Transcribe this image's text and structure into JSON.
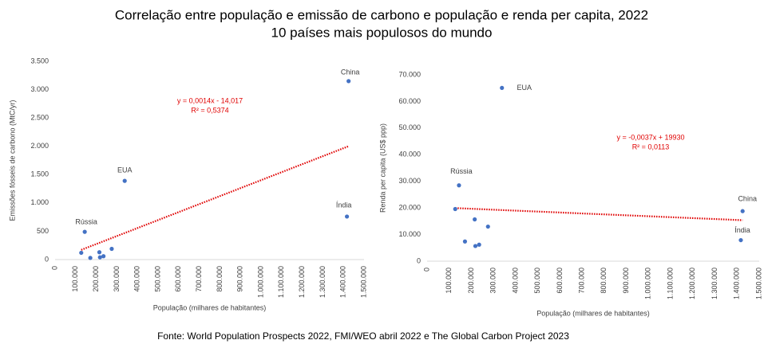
{
  "title": "Correlação entre população e emissão de carbono e população e renda per capita, 2022",
  "subtitle": "10 países mais populosos do mundo",
  "source": "Fonte: World Population Prospects 2022, FMI/WEO abril 2022 e The Global Carbon Project 2023",
  "chart_data": [
    {
      "type": "scatter",
      "color": "#4472c4",
      "trendline_color": "#e00000",
      "x_label": "População (milhares de habitantes)",
      "y_label": "Emissões fósseis de carbono (MtC/yr)",
      "annotations": [
        "y = 0,0014x - 14,017",
        "R² = 0,5374"
      ],
      "x": [
        1425000,
        1417000,
        338000,
        275000,
        235000,
        218000,
        215000,
        171000,
        144000,
        127000
      ],
      "y": [
        3150,
        760,
        1390,
        190,
        60,
        40,
        130,
        30,
        490,
        120
      ],
      "labels": [
        "China",
        "Índia",
        "EUA",
        null,
        null,
        null,
        null,
        null,
        "Rússia",
        null
      ],
      "xlim": [
        0,
        1500000
      ],
      "xticks": [
        0,
        {
          "value": 100000,
          "label": "100.000"
        },
        {
          "value": 200000,
          "label": "200.000"
        },
        {
          "value": 300000,
          "label": "300.000"
        },
        {
          "value": 400000,
          "label": "400.000"
        },
        {
          "value": 500000,
          "label": "500.000"
        },
        {
          "value": 600000,
          "label": "600.000"
        },
        {
          "value": 700000,
          "label": "700.000"
        },
        {
          "value": 800000,
          "label": "800.000"
        },
        {
          "value": 900000,
          "label": "900.000"
        },
        {
          "value": 1000000,
          "label": "1.000.000"
        },
        {
          "value": 1100000,
          "label": "1.100.000"
        },
        {
          "value": 1200000,
          "label": "1.200.000"
        },
        {
          "value": 1300000,
          "label": "1.300.000"
        },
        {
          "value": 1400000,
          "label": "1.400.000"
        },
        {
          "value": 1500000,
          "label": "1.500.000"
        }
      ],
      "ylim": [
        0,
        3500
      ],
      "yticks": [
        0,
        500,
        {
          "value": 1000,
          "label": "1.000"
        },
        {
          "value": 1500,
          "label": "1.500"
        },
        {
          "value": 2000,
          "label": "2.000"
        },
        {
          "value": 2500,
          "label": "2.500"
        },
        {
          "value": 3000,
          "label": "3.000"
        },
        {
          "value": 3500,
          "label": "3.500"
        }
      ]
    },
    {
      "type": "scatter",
      "color": "#4472c4",
      "trendline_color": "#e00000",
      "x_label": "População (milhares de habitantes)",
      "y_label": "Renda per capita (US$ ppp)",
      "annotations": [
        "y = -0,0037x + 19930",
        "R² = 0,0113"
      ],
      "x": [
        1425000,
        1417000,
        338000,
        275000,
        235000,
        218000,
        215000,
        171000,
        144000,
        127000
      ],
      "y": [
        18800,
        7900,
        65100,
        13000,
        6200,
        5700,
        15700,
        7400,
        28500,
        19600
      ],
      "labels": [
        "China",
        "Índia",
        "EUA",
        null,
        null,
        null,
        null,
        null,
        "Rússia",
        null
      ],
      "xlim": [
        0,
        1500000
      ],
      "xticks": [
        0,
        {
          "value": 100000,
          "label": "100.000"
        },
        {
          "value": 200000,
          "label": "200.000"
        },
        {
          "value": 300000,
          "label": "300.000"
        },
        {
          "value": 400000,
          "label": "400.000"
        },
        {
          "value": 500000,
          "label": "500.000"
        },
        {
          "value": 600000,
          "label": "600.000"
        },
        {
          "value": 700000,
          "label": "700.000"
        },
        {
          "value": 800000,
          "label": "800.000"
        },
        {
          "value": 900000,
          "label": "900.000"
        },
        {
          "value": 1000000,
          "label": "1.000.000"
        },
        {
          "value": 1100000,
          "label": "1.100.000"
        },
        {
          "value": 1200000,
          "label": "1.200.000"
        },
        {
          "value": 1300000,
          "label": "1.300.000"
        },
        {
          "value": 1400000,
          "label": "1.400.000"
        },
        {
          "value": 1500000,
          "label": "1.500.000"
        }
      ],
      "ylim": [
        0,
        70000
      ],
      "yticks": [
        0,
        {
          "value": 10000,
          "label": "10.000"
        },
        {
          "value": 20000,
          "label": "20.000"
        },
        {
          "value": 30000,
          "label": "30.000"
        },
        {
          "value": 40000,
          "label": "40.000"
        },
        {
          "value": 50000,
          "label": "50.000"
        },
        {
          "value": 60000,
          "label": "60.000"
        },
        {
          "value": 70000,
          "label": "70.000"
        }
      ]
    }
  ]
}
